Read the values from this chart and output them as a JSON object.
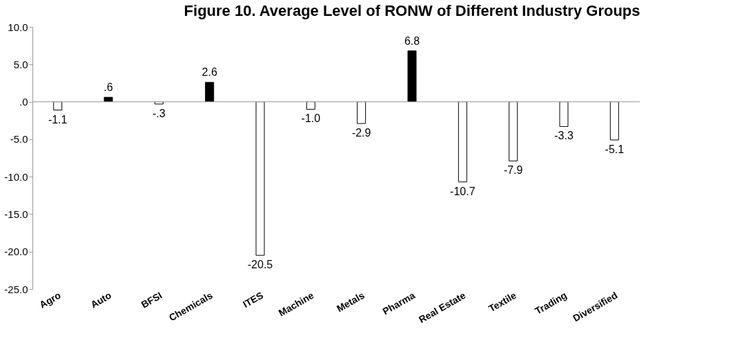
{
  "chart_data": {
    "type": "bar",
    "title": "Figure 10. Average Level of RONW of Different Industry Groups",
    "categories": [
      "Agro",
      "Auto",
      "BFSI",
      "Chemicals",
      "ITES",
      "Machine",
      "Metals",
      "Pharma",
      "Real Estate",
      "Textile",
      "Trading",
      "Diversified"
    ],
    "values": [
      -1.1,
      0.6,
      -0.3,
      2.6,
      -20.5,
      -1.0,
      -2.9,
      6.8,
      -10.7,
      -7.9,
      -3.3,
      -5.1
    ],
    "colors": [
      "#ffffff",
      "#000000",
      "#ffffff",
      "#000000",
      "#ffffff",
      "#ffffff",
      "#ffffff",
      "#000000",
      "#ffffff",
      "#ffffff",
      "#ffffff",
      "#ffffff"
    ],
    "value_labels": [
      "-1.1",
      ".6",
      "-.3",
      "2.6",
      "-20.5",
      "-1.0",
      "-2.9",
      "6.8",
      "-10.7",
      "-7.9",
      "-3.3",
      "-5.1"
    ],
    "yticks": [
      {
        "value": -25,
        "label": "-25.0"
      },
      {
        "value": -20,
        "label": "-20.0"
      },
      {
        "value": -15,
        "label": "-15.0"
      },
      {
        "value": -10,
        "label": "-10.0"
      },
      {
        "value": -5,
        "label": "-5.0"
      },
      {
        "value": 0,
        "label": ".0"
      },
      {
        "value": 5,
        "label": "5.0"
      },
      {
        "value": 10,
        "label": "10.0"
      }
    ],
    "ylim": [
      -25,
      10
    ]
  }
}
